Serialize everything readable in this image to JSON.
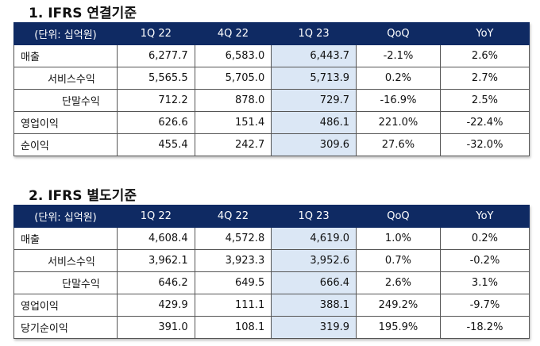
{
  "tables": [
    {
      "title": "1. IFRS  연결기준",
      "headers": [
        "(단위: 십억원)",
        "1Q 22",
        "4Q 22",
        "1Q 23",
        "QoQ",
        "YoY"
      ],
      "rows": [
        {
          "label": "매출",
          "indent": 0,
          "values": [
            "6,277.7",
            "6,583.0",
            "6,443.7",
            "-2.1%",
            "2.6%"
          ]
        },
        {
          "label": "서비스수익",
          "indent": 1,
          "values": [
            "5,565.5",
            "5,705.0",
            "5,713.9",
            "0.2%",
            "2.7%"
          ]
        },
        {
          "label": "단말수익",
          "indent": 2,
          "values": [
            "712.2",
            "878.0",
            "729.7",
            "-16.9%",
            "2.5%"
          ]
        },
        {
          "label": "영업이익",
          "indent": 0,
          "values": [
            "626.6",
            "151.4",
            "486.1",
            "221.0%",
            "-22.4%"
          ]
        },
        {
          "label": "순이익",
          "indent": 0,
          "values": [
            "455.4",
            "242.7",
            "309.6",
            "27.6%",
            "-32.0%"
          ]
        }
      ]
    },
    {
      "title": "2. IFRS  별도기준",
      "headers": [
        "(단위: 십억원)",
        "1Q 22",
        "4Q 22",
        "1Q 23",
        "QoQ",
        "YoY"
      ],
      "rows": [
        {
          "label": "매출",
          "indent": 0,
          "values": [
            "4,608.4",
            "4,572.8",
            "4,619.0",
            "1.0%",
            "0.2%"
          ]
        },
        {
          "label": "서비스수익",
          "indent": 1,
          "values": [
            "3,962.1",
            "3,923.3",
            "3,952.6",
            "0.7%",
            "-0.2%"
          ]
        },
        {
          "label": "단말수익",
          "indent": 2,
          "values": [
            "646.2",
            "649.5",
            "666.4",
            "2.6%",
            "3.1%"
          ]
        },
        {
          "label": "영업이익",
          "indent": 0,
          "values": [
            "429.9",
            "111.1",
            "388.1",
            "249.2%",
            "-9.7%"
          ]
        },
        {
          "label": "당기순이익",
          "indent": 0,
          "values": [
            "391.0",
            "108.1",
            "319.9",
            "195.9%",
            "-18.2%"
          ]
        }
      ]
    }
  ],
  "colors": {
    "header_bg": "#0f2a63",
    "highlight_bg": "#dbe7f5"
  }
}
